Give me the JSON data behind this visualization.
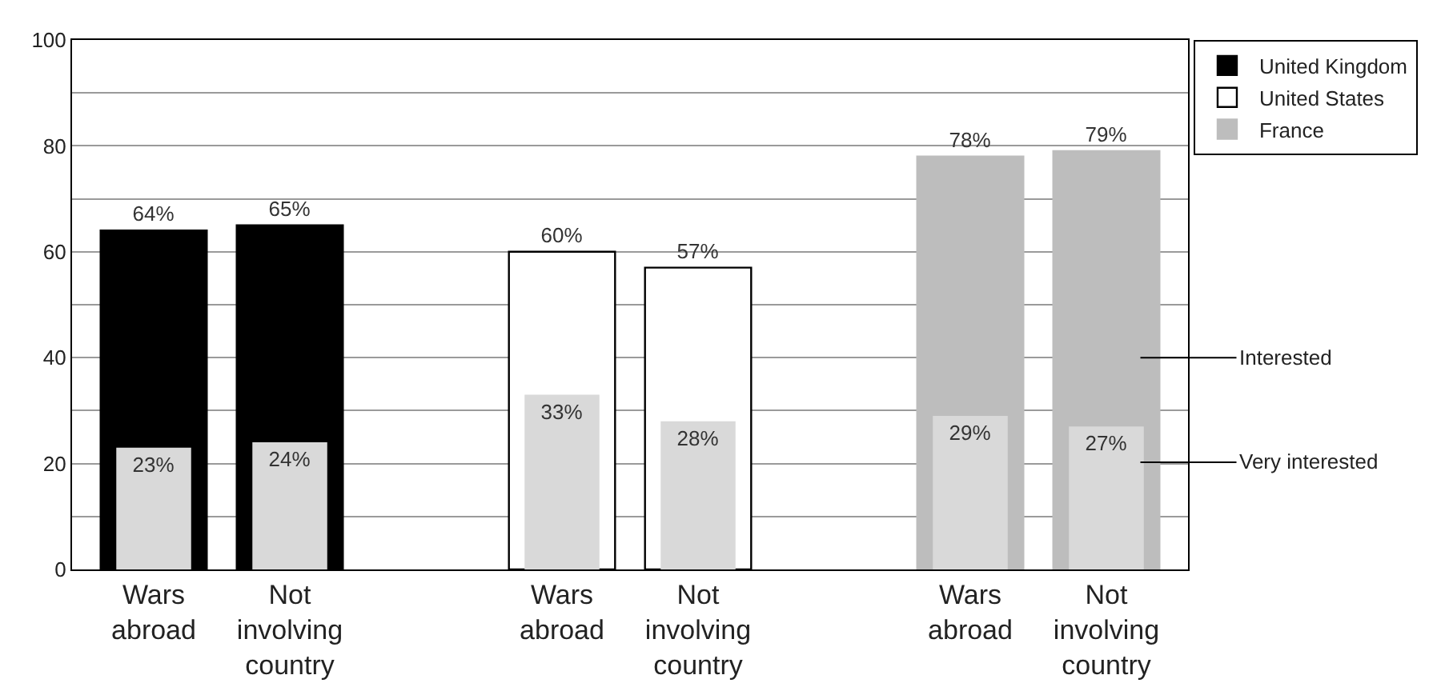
{
  "chart_data": {
    "type": "bar",
    "categories": [
      "Wars abroad",
      "Not involving country",
      null,
      "Wars abroad",
      "Not involving country",
      null,
      "Wars abroad",
      "Not involving country"
    ],
    "series": [
      {
        "name": "United Kingdom",
        "color": "#000000",
        "values": [
          64,
          65,
          null,
          null,
          null,
          null,
          null,
          null
        ],
        "value_labels": [
          "64%",
          "65%",
          null,
          null,
          null,
          null,
          null,
          null
        ]
      },
      {
        "name": "United States",
        "color": "#ffffff",
        "values": [
          null,
          null,
          null,
          60,
          57,
          null,
          null,
          null
        ],
        "value_labels": [
          null,
          null,
          null,
          "60%",
          "57%",
          null,
          null,
          null
        ]
      },
      {
        "name": "France",
        "color": "#bdbdbd",
        "values": [
          null,
          null,
          null,
          null,
          null,
          null,
          78,
          79
        ],
        "value_labels": [
          null,
          null,
          null,
          null,
          null,
          null,
          "78%",
          "79%"
        ]
      },
      {
        "color": "#d9d9d9",
        "values": [
          23,
          24,
          null,
          33,
          28,
          null,
          29,
          27
        ],
        "value_labels": [
          "23%",
          "24%",
          null,
          "33%",
          "28%",
          null,
          "29%",
          "27%"
        ]
      }
    ],
    "annotations": [
      "Interested",
      "Very interested"
    ],
    "ylim": [
      0,
      100
    ],
    "yticks": [
      0,
      {
        "value": 10,
        "label": null
      },
      20,
      {
        "value": 30,
        "label": null
      },
      40,
      {
        "value": 50,
        "label": null
      },
      60,
      {
        "value": 70,
        "label": null
      },
      80,
      {
        "value": 90,
        "label": null
      },
      100
    ],
    "grid": "y",
    "legend": "top right"
  }
}
